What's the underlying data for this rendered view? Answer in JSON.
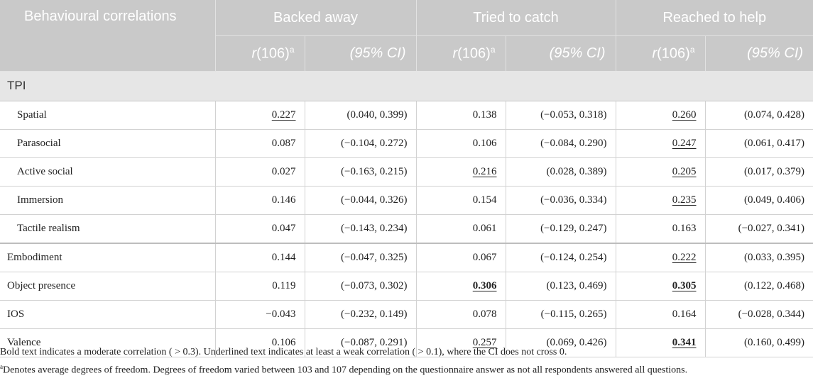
{
  "header": {
    "row_label": "Behavioural correlations",
    "groups": [
      "Backed away",
      "Tried to catch",
      "Reached to help"
    ],
    "sub_r": "r",
    "sub_df": "(106)",
    "sub_sup": "a",
    "sub_ci": "(95% CI)"
  },
  "section": {
    "label": "TPI"
  },
  "rows": [
    {
      "label": "Spatial",
      "values": [
        {
          "r": "0.227",
          "u": true,
          "b": false
        },
        {
          "ci": "(0.040, 0.399)"
        },
        {
          "r": "0.138",
          "u": false,
          "b": false
        },
        {
          "ci": "(−0.053, 0.318)"
        },
        {
          "r": "0.260",
          "u": true,
          "b": false
        },
        {
          "ci": "(0.074, 0.428)"
        }
      ]
    },
    {
      "label": "Parasocial",
      "values": [
        {
          "r": "0.087",
          "u": false,
          "b": false
        },
        {
          "ci": "(−0.104, 0.272)"
        },
        {
          "r": "0.106",
          "u": false,
          "b": false
        },
        {
          "ci": "(−0.084, 0.290)"
        },
        {
          "r": "0.247",
          "u": true,
          "b": false
        },
        {
          "ci": "(0.061, 0.417)"
        }
      ]
    },
    {
      "label": "Active social",
      "values": [
        {
          "r": "0.027",
          "u": false,
          "b": false
        },
        {
          "ci": "(−0.163, 0.215)"
        },
        {
          "r": "0.216",
          "u": true,
          "b": false
        },
        {
          "ci": "(0.028, 0.389)"
        },
        {
          "r": "0.205",
          "u": true,
          "b": false
        },
        {
          "ci": "(0.017, 0.379)"
        }
      ]
    },
    {
      "label": "Immersion",
      "values": [
        {
          "r": "0.146",
          "u": false,
          "b": false
        },
        {
          "ci": "(−0.044, 0.326)"
        },
        {
          "r": "0.154",
          "u": false,
          "b": false
        },
        {
          "ci": "(−0.036, 0.334)"
        },
        {
          "r": "0.235",
          "u": true,
          "b": false
        },
        {
          "ci": "(0.049, 0.406)"
        }
      ]
    },
    {
      "label": "Tactile realism",
      "values": [
        {
          "r": "0.047",
          "u": false,
          "b": false
        },
        {
          "ci": "(−0.143, 0.234)"
        },
        {
          "r": "0.061",
          "u": false,
          "b": false
        },
        {
          "ci": "(−0.129, 0.247)"
        },
        {
          "r": "0.163",
          "u": false,
          "b": false
        },
        {
          "ci": "(−0.027, 0.341)"
        }
      ]
    },
    {
      "label": "Embodiment",
      "values": [
        {
          "r": "0.144",
          "u": false,
          "b": false
        },
        {
          "ci": "(−0.047, 0.325)"
        },
        {
          "r": "0.067",
          "u": false,
          "b": false
        },
        {
          "ci": "(−0.124, 0.254)"
        },
        {
          "r": "0.222",
          "u": true,
          "b": false
        },
        {
          "ci": "(0.033, 0.395)"
        }
      ]
    },
    {
      "label": "Object presence",
      "values": [
        {
          "r": "0.119",
          "u": false,
          "b": false
        },
        {
          "ci": "(−0.073, 0.302)"
        },
        {
          "r": "0.306",
          "u": true,
          "b": true
        },
        {
          "ci": "(0.123, 0.469)"
        },
        {
          "r": "0.305",
          "u": true,
          "b": true
        },
        {
          "ci": "(0.122, 0.468)"
        }
      ]
    },
    {
      "label": "IOS",
      "values": [
        {
          "r": "−0.043",
          "u": false,
          "b": false
        },
        {
          "ci": "(−0.232, 0.149)"
        },
        {
          "r": "0.078",
          "u": false,
          "b": false
        },
        {
          "ci": "(−0.115, 0.265)"
        },
        {
          "r": "0.164",
          "u": false,
          "b": false
        },
        {
          "ci": "(−0.028, 0.344)"
        }
      ]
    },
    {
      "label": "Valence",
      "values": [
        {
          "r": "0.106",
          "u": false,
          "b": false
        },
        {
          "ci": "(−0.087, 0.291)"
        },
        {
          "r": "0.257",
          "u": true,
          "b": false
        },
        {
          "ci": "(0.069, 0.426)"
        },
        {
          "r": "0.341",
          "u": true,
          "b": true
        },
        {
          "ci": "(0.160, 0.499)"
        }
      ]
    }
  ],
  "footnotes": {
    "note1": "Bold text indicates a moderate correlation ( > 0.3). Underlined text indicates at least a weak correlation ( > 0.1), where the CI does not cross 0.",
    "note2_sup": "a",
    "note2": "Denotes average degrees of freedom. Degrees of freedom varied between 103 and 107 depending on the questionnaire answer as not all respondents answered all questions."
  }
}
